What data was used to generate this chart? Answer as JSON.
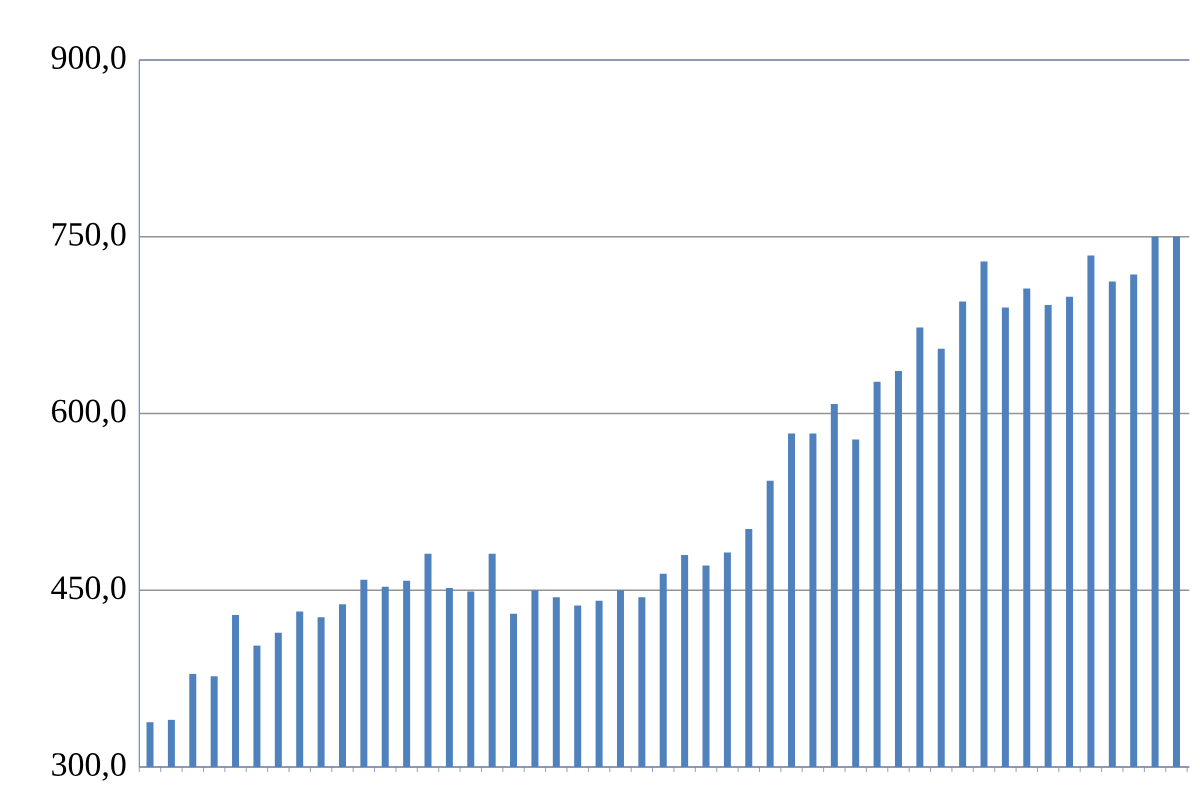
{
  "chart_data": {
    "type": "bar",
    "categories": [
      null,
      null,
      null,
      null,
      null,
      null,
      null,
      null,
      null,
      null,
      null,
      null,
      null,
      null,
      null,
      null,
      null,
      null,
      null,
      null,
      null,
      null,
      null,
      null,
      null,
      null,
      null,
      null,
      null,
      null,
      null,
      null,
      null,
      null,
      null,
      null,
      null,
      null,
      null,
      null,
      null,
      null,
      null,
      null,
      null,
      null,
      null,
      null,
      null
    ],
    "values": [
      338,
      340,
      379,
      377,
      429,
      403,
      414,
      432,
      427,
      438,
      459,
      453,
      458,
      481,
      452,
      449,
      481,
      430,
      450,
      444,
      437,
      441,
      450,
      444,
      464,
      480,
      471,
      482,
      502,
      543,
      583,
      583,
      608,
      578,
      627,
      636,
      673,
      655,
      695,
      729,
      690,
      706,
      692,
      699,
      734,
      712,
      718,
      750,
      750
    ],
    "color": "#4f81bd",
    "ylim": [
      300,
      900
    ],
    "yticks": [
      {
        "value": 300,
        "label": "300,0"
      },
      {
        "value": 450,
        "label": "450,0"
      },
      {
        "value": 600,
        "label": "600,0"
      },
      {
        "value": 750,
        "label": "750,0"
      },
      {
        "value": 900,
        "label": "900,0"
      }
    ],
    "grid": "y"
  }
}
